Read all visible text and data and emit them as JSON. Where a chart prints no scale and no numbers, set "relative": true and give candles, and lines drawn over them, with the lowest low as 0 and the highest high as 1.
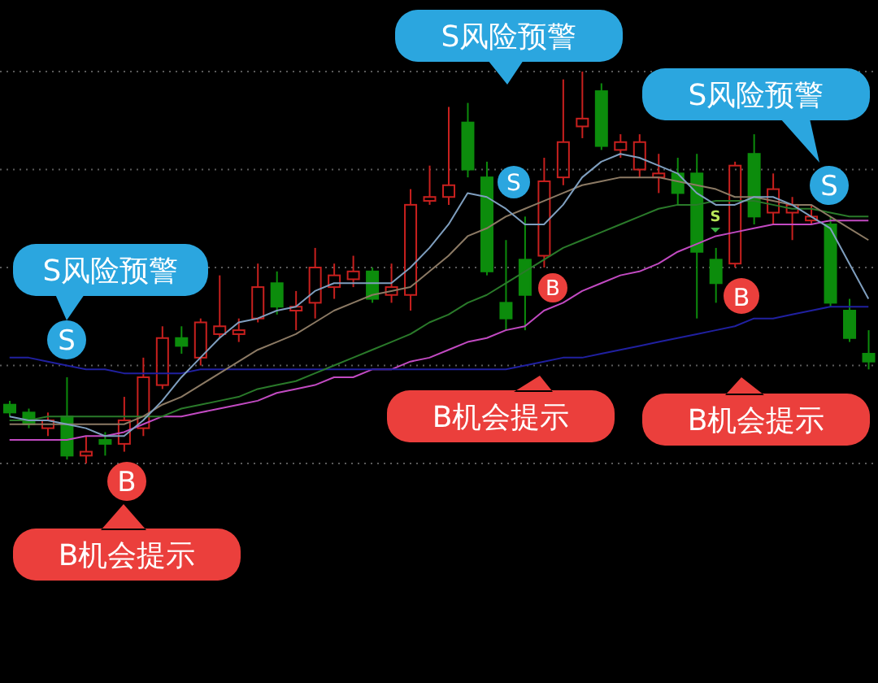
{
  "chart_data": {
    "type": "candlestick",
    "relative": true,
    "categories": [
      null,
      null,
      null,
      null,
      null,
      null,
      null,
      null,
      null,
      null,
      null,
      null,
      null,
      null,
      null,
      null,
      null,
      null,
      null,
      null,
      null,
      null,
      null,
      null,
      null,
      null,
      null,
      null,
      null,
      null,
      null,
      null,
      null,
      null,
      null,
      null,
      null,
      null,
      null,
      null,
      null,
      null,
      null,
      null,
      null,
      null
    ],
    "ohlc": [
      [
        0.15,
        0.16,
        0.12,
        0.13
      ],
      [
        0.13,
        0.14,
        0.09,
        0.1
      ],
      [
        0.09,
        0.13,
        0.07,
        0.11
      ],
      [
        0.12,
        0.22,
        0.01,
        0.02
      ],
      [
        0.02,
        0.07,
        0,
        0.03
      ],
      [
        0.06,
        0.08,
        0.02,
        0.05
      ],
      [
        0.05,
        0.17,
        0.03,
        0.11
      ],
      [
        0.09,
        0.27,
        0.07,
        0.22
      ],
      [
        0.2,
        0.35,
        0.19,
        0.32
      ],
      [
        0.32,
        0.35,
        0.28,
        0.3
      ],
      [
        0.27,
        0.37,
        0.25,
        0.36
      ],
      [
        0.33,
        0.48,
        0.32,
        0.35
      ],
      [
        0.33,
        0.37,
        0.31,
        0.34
      ],
      [
        0.37,
        0.51,
        0.36,
        0.45
      ],
      [
        0.46,
        0.49,
        0.38,
        0.4
      ],
      [
        0.39,
        0.44,
        0.34,
        0.4
      ],
      [
        0.41,
        0.55,
        0.37,
        0.5
      ],
      [
        0.45,
        0.51,
        0.42,
        0.48
      ],
      [
        0.47,
        0.53,
        0.45,
        0.49
      ],
      [
        0.49,
        0.5,
        0.41,
        0.42
      ],
      [
        0.43,
        0.51,
        0.41,
        0.45
      ],
      [
        0.43,
        0.7,
        0.39,
        0.66
      ],
      [
        0.67,
        0.76,
        0.66,
        0.68
      ],
      [
        0.68,
        0.91,
        0.66,
        0.71
      ],
      [
        0.87,
        0.92,
        0.73,
        0.75
      ],
      [
        0.73,
        0.77,
        0.48,
        0.49
      ],
      [
        0.41,
        0.57,
        0.34,
        0.37
      ],
      [
        0.52,
        0.63,
        0.34,
        0.43
      ],
      [
        0.53,
        0.78,
        0.5,
        0.72
      ],
      [
        0.73,
        0.98,
        0.71,
        0.82
      ],
      [
        0.86,
        1,
        0.83,
        0.88
      ],
      [
        0.95,
        0.97,
        0.8,
        0.81
      ],
      [
        0.8,
        0.84,
        0.78,
        0.82
      ],
      [
        0.75,
        0.84,
        0.73,
        0.82
      ],
      [
        0.73,
        0.79,
        0.69,
        0.74
      ],
      [
        0.74,
        0.78,
        0.66,
        0.69
      ],
      [
        0.74,
        0.79,
        0.37,
        0.54
      ],
      [
        0.52,
        0.55,
        0.41,
        0.46
      ],
      [
        0.51,
        0.77,
        0.5,
        0.76
      ],
      [
        0.79,
        0.84,
        0.61,
        0.63
      ],
      [
        0.64,
        0.74,
        0.61,
        0.7
      ],
      [
        0.64,
        0.68,
        0.57,
        0.66
      ],
      [
        0.62,
        0.66,
        0.61,
        0.63
      ],
      [
        0.61,
        0.63,
        0.4,
        0.41
      ],
      [
        0.39,
        0.42,
        0.31,
        0.32
      ],
      [
        0.28,
        0.34,
        0.24,
        0.26
      ]
    ],
    "colors": [
      "#0c8c0c",
      "#0c8c0c",
      "#c8201e",
      "#0c8c0c",
      "#c8201e",
      "#0c8c0c",
      "#c8201e",
      "#c8201e",
      "#c8201e",
      "#0c8c0c",
      "#c8201e",
      "#c8201e",
      "#c8201e",
      "#c8201e",
      "#0c8c0c",
      "#c8201e",
      "#c8201e",
      "#c8201e",
      "#c8201e",
      "#0c8c0c",
      "#c8201e",
      "#c8201e",
      "#c8201e",
      "#c8201e",
      "#0c8c0c",
      "#0c8c0c",
      "#0c8c0c",
      "#0c8c0c",
      "#c8201e",
      "#c8201e",
      "#c8201e",
      "#0c8c0c",
      "#c8201e",
      "#c8201e",
      "#c8201e",
      "#0c8c0c",
      "#0c8c0c",
      "#0c8c0c",
      "#c8201e",
      "#0c8c0c",
      "#c8201e",
      "#c8201e",
      "#c8201e",
      "#0c8c0c",
      "#0c8c0c",
      "#0c8c0c"
    ],
    "series": [
      {
        "type": "line",
        "color": "#c24ac2",
        "values": [
          0.06,
          0.06,
          0.06,
          0.06,
          0.07,
          0.07,
          0.08,
          0.1,
          0.12,
          0.12,
          0.13,
          0.14,
          0.15,
          0.16,
          0.18,
          0.19,
          0.2,
          0.22,
          0.22,
          0.24,
          0.24,
          0.26,
          0.27,
          0.29,
          0.31,
          0.32,
          0.34,
          0.35,
          0.39,
          0.41,
          0.44,
          0.46,
          0.48,
          0.49,
          0.51,
          0.54,
          0.56,
          0.58,
          0.59,
          0.6,
          0.61,
          0.61,
          0.61,
          0.62,
          0.62,
          0.62
        ]
      },
      {
        "type": "line",
        "color": "#2020a0",
        "values": [
          0.27,
          0.27,
          0.26,
          0.25,
          0.24,
          0.24,
          0.23,
          0.23,
          0.23,
          0.23,
          0.24,
          0.24,
          0.24,
          0.24,
          0.24,
          0.24,
          0.24,
          0.24,
          0.24,
          0.24,
          0.24,
          0.24,
          0.24,
          0.24,
          0.24,
          0.24,
          0.24,
          0.25,
          0.26,
          0.27,
          0.27,
          0.28,
          0.29,
          0.3,
          0.31,
          0.32,
          0.33,
          0.34,
          0.35,
          0.37,
          0.37,
          0.38,
          0.39,
          0.4,
          0.4,
          0.4
        ]
      },
      {
        "type": "line",
        "color": "#2a7a2a",
        "values": [
          0.11,
          0.11,
          0.12,
          0.12,
          0.12,
          0.12,
          0.12,
          0.12,
          0.12,
          0.14,
          0.15,
          0.16,
          0.17,
          0.19,
          0.2,
          0.21,
          0.23,
          0.25,
          0.27,
          0.29,
          0.31,
          0.33,
          0.36,
          0.38,
          0.41,
          0.43,
          0.46,
          0.49,
          0.52,
          0.55,
          0.57,
          0.59,
          0.61,
          0.63,
          0.65,
          0.66,
          0.66,
          0.67,
          0.67,
          0.67,
          0.66,
          0.65,
          0.65,
          0.64,
          0.63,
          0.63
        ]
      },
      {
        "type": "line",
        "color": "#8c7a64",
        "values": [
          0.1,
          0.1,
          0.1,
          0.1,
          0.1,
          0.1,
          0.1,
          0.12,
          0.15,
          0.17,
          0.2,
          0.23,
          0.26,
          0.29,
          0.31,
          0.33,
          0.36,
          0.39,
          0.41,
          0.43,
          0.44,
          0.45,
          0.49,
          0.53,
          0.58,
          0.6,
          0.63,
          0.65,
          0.67,
          0.69,
          0.71,
          0.72,
          0.73,
          0.73,
          0.73,
          0.72,
          0.71,
          0.7,
          0.68,
          0.68,
          0.67,
          0.66,
          0.66,
          0.63,
          0.6,
          0.57
        ]
      },
      {
        "type": "line",
        "color": "#7f9fbf",
        "values": [
          0.12,
          0.11,
          0.11,
          0.1,
          0.09,
          0.07,
          0.07,
          0.11,
          0.16,
          0.22,
          0.27,
          0.32,
          0.36,
          0.37,
          0.39,
          0.4,
          0.44,
          0.46,
          0.46,
          0.46,
          0.46,
          0.5,
          0.55,
          0.61,
          0.69,
          0.68,
          0.65,
          0.61,
          0.61,
          0.66,
          0.73,
          0.77,
          0.79,
          0.78,
          0.76,
          0.74,
          0.69,
          0.66,
          0.66,
          0.68,
          0.68,
          0.66,
          0.63,
          0.6,
          0.51,
          0.42
        ]
      }
    ],
    "marker": "none",
    "grid": "y",
    "annotations": [
      "S风险预警",
      "S",
      "B",
      "B机会提示",
      "S风险预警",
      "S",
      "B",
      "B机会提示",
      "S风险预警",
      "S",
      "S",
      "B",
      "B机会提示"
    ]
  }
}
